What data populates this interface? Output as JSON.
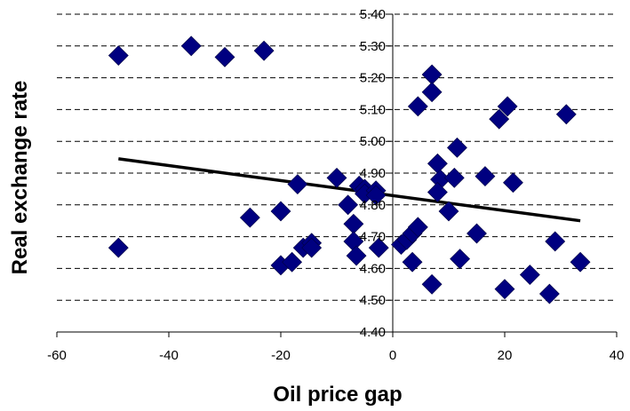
{
  "chart_data": {
    "type": "scatter",
    "xlabel": "Oil price gap",
    "ylabel": "Real exchange rate",
    "xlim": [
      -60,
      40
    ],
    "ylim": [
      4.4,
      5.4
    ],
    "x_ticks": [
      -60,
      -40,
      -20,
      0,
      20,
      40
    ],
    "x_tick_labels": [
      "-60",
      "-40",
      "-20",
      "0",
      "20",
      "40"
    ],
    "y_ticks": [
      4.4,
      4.5,
      4.6,
      4.7,
      4.8,
      4.9,
      5.0,
      5.1,
      5.2,
      5.3,
      5.4
    ],
    "y_tick_labels": [
      "4.40",
      "4.50",
      "4.60",
      "4.70",
      "4.80",
      "4.90",
      "5.00",
      "5.10",
      "5.20",
      "5.30",
      "5.40"
    ],
    "grid": "horizontal dashed",
    "legend": "none",
    "marker_color": "#000080",
    "trendline_color": "#000000",
    "points": [
      {
        "x": -49,
        "y": 5.27
      },
      {
        "x": -36,
        "y": 5.3
      },
      {
        "x": -30,
        "y": 5.265
      },
      {
        "x": -23,
        "y": 5.285
      },
      {
        "x": -49,
        "y": 4.665
      },
      {
        "x": -25.5,
        "y": 4.76
      },
      {
        "x": -20,
        "y": 4.78
      },
      {
        "x": -17,
        "y": 4.865
      },
      {
        "x": -20,
        "y": 4.61
      },
      {
        "x": -18,
        "y": 4.62
      },
      {
        "x": -16,
        "y": 4.665
      },
      {
        "x": -14.5,
        "y": 4.68
      },
      {
        "x": -14.5,
        "y": 4.665
      },
      {
        "x": -10,
        "y": 4.885
      },
      {
        "x": -8,
        "y": 4.8
      },
      {
        "x": -7,
        "y": 4.74
      },
      {
        "x": -7,
        "y": 4.685
      },
      {
        "x": -6.5,
        "y": 4.64
      },
      {
        "x": -6,
        "y": 4.86
      },
      {
        "x": -5,
        "y": 4.85
      },
      {
        "x": -5,
        "y": 4.835
      },
      {
        "x": -3,
        "y": 4.845
      },
      {
        "x": -3,
        "y": 4.83
      },
      {
        "x": -2.5,
        "y": 4.665
      },
      {
        "x": 1.5,
        "y": 4.675
      },
      {
        "x": 2.5,
        "y": 4.69
      },
      {
        "x": 3.5,
        "y": 4.71
      },
      {
        "x": 4.5,
        "y": 4.73
      },
      {
        "x": 3.5,
        "y": 4.62
      },
      {
        "x": 4.5,
        "y": 5.11
      },
      {
        "x": 7,
        "y": 5.21
      },
      {
        "x": 7,
        "y": 5.155
      },
      {
        "x": 8,
        "y": 4.93
      },
      {
        "x": 8.5,
        "y": 4.88
      },
      {
        "x": 8,
        "y": 4.84
      },
      {
        "x": 10,
        "y": 4.78
      },
      {
        "x": 7,
        "y": 4.55
      },
      {
        "x": 11,
        "y": 4.885
      },
      {
        "x": 11.5,
        "y": 4.98
      },
      {
        "x": 12,
        "y": 4.63
      },
      {
        "x": 15,
        "y": 4.71
      },
      {
        "x": 16.5,
        "y": 4.89
      },
      {
        "x": 19,
        "y": 5.07
      },
      {
        "x": 20.5,
        "y": 5.11
      },
      {
        "x": 20,
        "y": 4.535
      },
      {
        "x": 21.5,
        "y": 4.87
      },
      {
        "x": 24.5,
        "y": 4.58
      },
      {
        "x": 28,
        "y": 4.52
      },
      {
        "x": 29,
        "y": 4.685
      },
      {
        "x": 31,
        "y": 5.085
      },
      {
        "x": 33.5,
        "y": 4.62
      }
    ],
    "trendline": {
      "x": [
        -49,
        33.5
      ],
      "y": [
        4.945,
        4.75
      ]
    }
  }
}
